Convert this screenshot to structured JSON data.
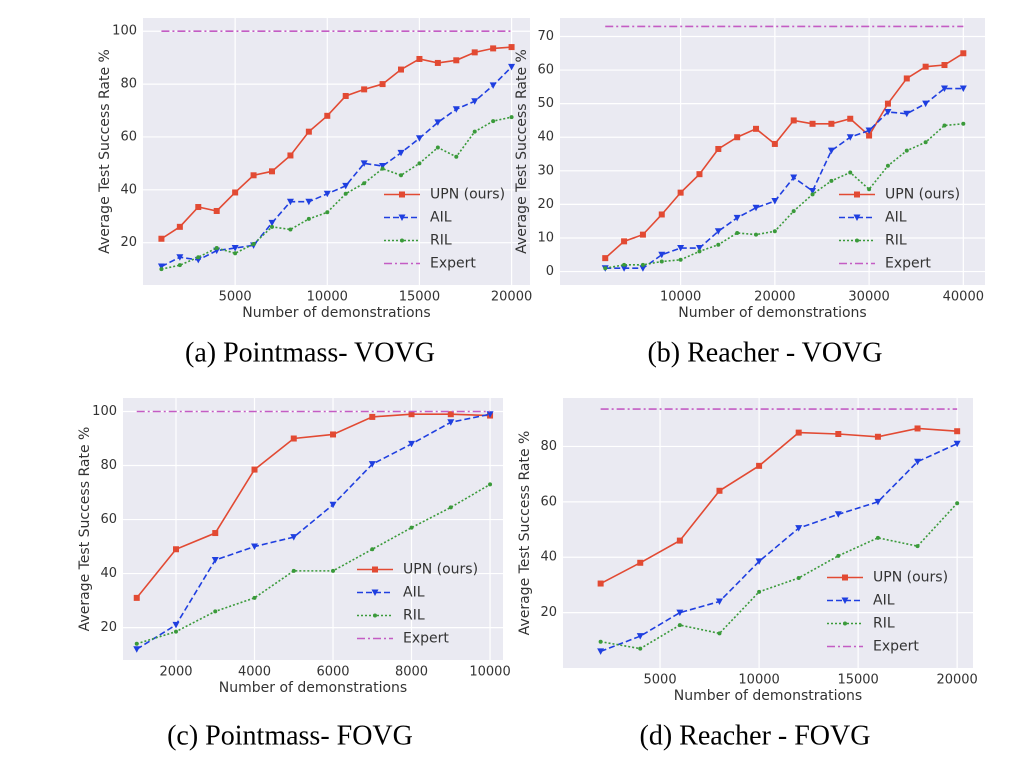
{
  "chart_data": [
    {
      "type": "line",
      "caption": "(a) Pointmass- VOVG",
      "xlabel": "Number of demonstrations",
      "ylabel": "Average Test Success Rate %",
      "x": [
        1000,
        2000,
        3000,
        4000,
        5000,
        6000,
        7000,
        8000,
        9000,
        10000,
        11000,
        12000,
        13000,
        14000,
        15000,
        16000,
        17000,
        18000,
        19000,
        20000
      ],
      "xlim": [
        0,
        21000
      ],
      "xticks": [
        5000,
        10000,
        15000,
        20000
      ],
      "ylim": [
        4,
        105
      ],
      "yticks": [
        20,
        40,
        60,
        80,
        100
      ],
      "grid": true,
      "legend": "lower right",
      "series": [
        {
          "name": "UPN (ours)",
          "color": "#e24a33",
          "values": [
            21.5,
            26,
            33.5,
            32,
            39,
            45.5,
            47,
            53,
            62,
            68,
            75.5,
            78,
            80,
            85.5,
            89.5,
            88,
            89,
            92,
            93.5,
            94
          ]
        },
        {
          "name": "AIL",
          "color": "#1f3fe0",
          "values": [
            11,
            14.5,
            13.5,
            17,
            18,
            19,
            27.5,
            35.5,
            35.5,
            38.5,
            41.5,
            50,
            49,
            54,
            59.5,
            65.5,
            70.5,
            73.5,
            79.5,
            86.5
          ]
        },
        {
          "name": "RIL",
          "color": "#3a9a3a",
          "values": [
            10,
            11.5,
            14.5,
            18,
            16,
            19.5,
            26,
            25,
            29,
            31.5,
            38.5,
            42.5,
            48,
            45.5,
            50,
            56,
            52.5,
            62,
            66,
            67.5
          ]
        },
        {
          "name": "Expert",
          "color": "#c45cc4",
          "values": [
            100,
            100,
            100,
            100,
            100,
            100,
            100,
            100,
            100,
            100,
            100,
            100,
            100,
            100,
            100,
            100,
            100,
            100,
            100,
            100
          ]
        }
      ]
    },
    {
      "type": "line",
      "caption": "(b) Reacher - VOVG",
      "xlabel": "Number of demonstrations",
      "ylabel": "Average Test Success Rate %",
      "x": [
        2000,
        4000,
        6000,
        8000,
        10000,
        12000,
        14000,
        16000,
        18000,
        20000,
        22000,
        24000,
        26000,
        28000,
        30000,
        32000,
        34000,
        36000,
        38000,
        40000
      ],
      "xlim": [
        -2800,
        42300
      ],
      "xticks": [
        10000,
        20000,
        30000,
        40000
      ],
      "ylim": [
        -4,
        75.5
      ],
      "yticks": [
        0,
        10,
        20,
        30,
        40,
        50,
        60,
        70
      ],
      "grid": true,
      "legend": "lower right",
      "series": [
        {
          "name": "UPN (ours)",
          "color": "#e24a33",
          "values": [
            4,
            9,
            11,
            17,
            23.5,
            29,
            36.5,
            40,
            42.5,
            38,
            45,
            44,
            44,
            45.5,
            40.5,
            50,
            57.5,
            61,
            61.5,
            65
          ]
        },
        {
          "name": "AIL",
          "color": "#1f3fe0",
          "values": [
            1,
            1,
            1,
            5,
            7,
            7,
            12,
            16,
            19,
            21,
            28,
            24,
            36,
            40,
            42,
            47.5,
            47,
            50,
            54.5,
            54.5
          ]
        },
        {
          "name": "RIL",
          "color": "#3a9a3a",
          "values": [
            1,
            2,
            2,
            3,
            3.5,
            6,
            8,
            11.5,
            11,
            12,
            18,
            23,
            27,
            29.5,
            24.5,
            31.5,
            36,
            38.5,
            43.5,
            44
          ]
        },
        {
          "name": "Expert",
          "color": "#c45cc4",
          "values": [
            73,
            73,
            73,
            73,
            73,
            73,
            73,
            73,
            73,
            73,
            73,
            73,
            73,
            73,
            73,
            73,
            73,
            73,
            73,
            73
          ]
        }
      ]
    },
    {
      "type": "line",
      "caption": "(c) Pointmass- FOVG",
      "xlabel": "Number of demonstrations",
      "ylabel": "Average Test Success Rate %",
      "x": [
        1000,
        2000,
        3000,
        4000,
        5000,
        6000,
        7000,
        8000,
        9000,
        10000
      ],
      "xlim": [
        650,
        10330
      ],
      "xticks": [
        2000,
        4000,
        6000,
        8000,
        10000
      ],
      "ylim": [
        8,
        105
      ],
      "yticks": [
        20,
        40,
        60,
        80,
        100
      ],
      "grid": true,
      "legend": "lower right",
      "series": [
        {
          "name": "UPN (ours)",
          "color": "#e24a33",
          "values": [
            31,
            49,
            55,
            78.5,
            90,
            91.5,
            98,
            99,
            99,
            98.5
          ]
        },
        {
          "name": "AIL",
          "color": "#1f3fe0",
          "values": [
            12,
            21,
            45,
            50,
            53.5,
            65.5,
            80.5,
            88,
            96,
            99
          ]
        },
        {
          "name": "RIL",
          "color": "#3a9a3a",
          "values": [
            14,
            18.5,
            26,
            31,
            41,
            41,
            49,
            57,
            64.5,
            73
          ]
        },
        {
          "name": "Expert",
          "color": "#c45cc4",
          "values": [
            100,
            100,
            100,
            100,
            100,
            100,
            100,
            100,
            100,
            100
          ]
        }
      ]
    },
    {
      "type": "line",
      "caption": "(d) Reacher - FOVG",
      "xlabel": "Number of demonstrations",
      "ylabel": "Average Test Success Rate %",
      "x": [
        2000,
        4000,
        6000,
        8000,
        10000,
        12000,
        14000,
        16000,
        18000,
        20000
      ],
      "xlim": [
        100,
        20800
      ],
      "xticks": [
        5000,
        10000,
        15000,
        20000
      ],
      "ylim": [
        0,
        97.5
      ],
      "yticks": [
        20,
        40,
        60,
        80
      ],
      "grid": true,
      "legend": "lower right",
      "series": [
        {
          "name": "UPN (ours)",
          "color": "#e24a33",
          "values": [
            30.5,
            38,
            46,
            64,
            73,
            85,
            84.5,
            83.5,
            86.5,
            85.5
          ]
        },
        {
          "name": "AIL",
          "color": "#1f3fe0",
          "values": [
            6,
            11.5,
            20,
            24,
            38.5,
            50.5,
            55.5,
            60,
            74.5,
            81
          ]
        },
        {
          "name": "RIL",
          "color": "#3a9a3a",
          "values": [
            9.5,
            7,
            15.5,
            12.5,
            27.5,
            32.5,
            40.5,
            47,
            44,
            59.5
          ]
        },
        {
          "name": "Expert",
          "color": "#c45cc4",
          "values": [
            93.5,
            93.5,
            93.5,
            93.5,
            93.5,
            93.5,
            93.5,
            93.5,
            93.5,
            93.5
          ]
        }
      ]
    }
  ]
}
